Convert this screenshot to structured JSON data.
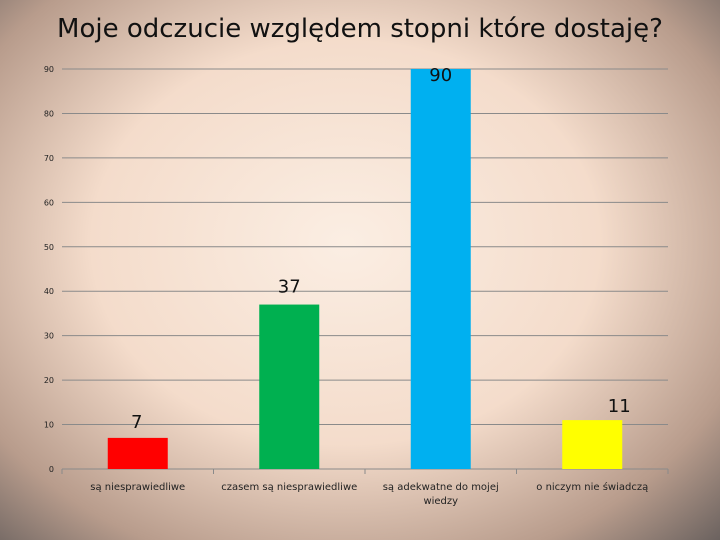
{
  "chart_data": {
    "type": "bar",
    "title": "Moje odczucie względem stopni które dostaję?",
    "categories": [
      [
        "są niesprawiedliwe"
      ],
      [
        "czasem są niesprawiedliwe"
      ],
      [
        "są adekwatne do mojej",
        "wiedzy"
      ],
      [
        "o niczym nie świadczą"
      ]
    ],
    "values": [
      7,
      37,
      90,
      11
    ],
    "colors": [
      "#ff0000",
      "#00b050",
      "#00b0f0",
      "#ffff00"
    ],
    "ylim": [
      0,
      90
    ],
    "yticks": [
      0,
      10,
      20,
      30,
      40,
      50,
      60,
      70,
      80,
      90
    ],
    "grid": true,
    "legend": "none"
  }
}
